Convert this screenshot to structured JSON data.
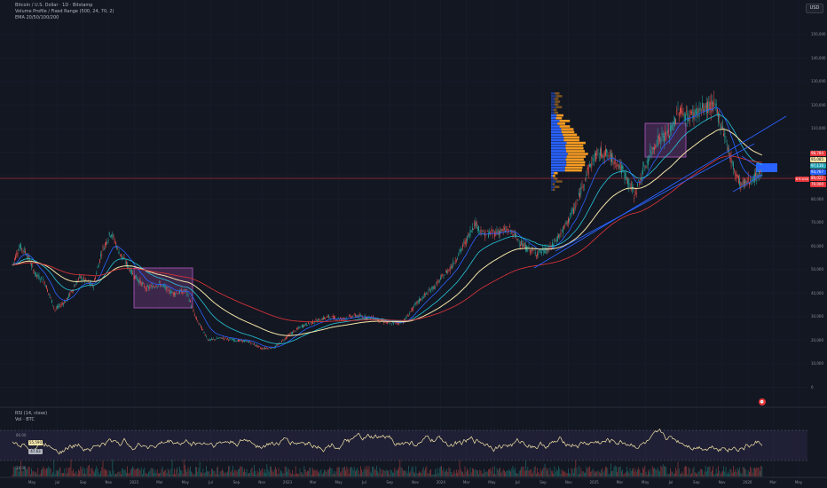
{
  "legend": {
    "title": "Bitcoin / U.S. Dollar · 1D · Bitstamp",
    "indicator_vp": "Volume Profile / Fixed Range (500, 24, 70, 2)",
    "indicator_ema": "EMA 20/50/100/200"
  },
  "currency_button": "USD",
  "symbol_tag": "BTCUSD",
  "y_axis_labels": [
    "150,000",
    "140,000",
    "130,000",
    "120,000",
    "110,000",
    "100,000",
    "90,000",
    "80,000",
    "70,000",
    "60,000",
    "50,000",
    "40,000",
    "30,000",
    "20,000",
    "10,000",
    "0"
  ],
  "price_tags": [
    {
      "label": "98,784",
      "color": "#e5353a"
    },
    {
      "label": "95,085",
      "color": "#f5e6a8"
    },
    {
      "label": "97,116",
      "color": "#2aa6b6"
    },
    {
      "label": "93,767",
      "color": "#2962ff"
    },
    {
      "label": "89,022",
      "color": "#e5353a"
    },
    {
      "label": "79,000",
      "color": "#e5353a"
    }
  ],
  "rsi": {
    "title": "RSI (14, close)",
    "vol_label": "Vol · BTC",
    "levels": [
      "80.00",
      "20.00"
    ],
    "tags": [
      {
        "label": "55,590",
        "color": "#f5e6a8"
      },
      {
        "label": "47.63",
        "color": "#b2b5be"
      }
    ]
  },
  "x_axis_labels": [
    "May",
    "Jul",
    "Sep",
    "Nov",
    "2022",
    "Mar",
    "May",
    "Jul",
    "Sep",
    "Nov",
    "2023",
    "Mar",
    "May",
    "Jul",
    "Sep",
    "Nov",
    "2024",
    "Mar",
    "May",
    "Jul",
    "Sep",
    "Nov",
    "2025",
    "Mar",
    "May",
    "Jul",
    "Sep",
    "Nov",
    "2026",
    "Mar",
    "May"
  ],
  "colors": {
    "background": "#131722",
    "up": "#26a69a",
    "down": "#ef5350",
    "ema20": "#2962ff",
    "ema50": "#26c6da",
    "ema100": "#f5e6a8",
    "ema200": "#e5353a",
    "box": "#b659c4",
    "trendline": "#2962ff",
    "vp_blue": "#2962ff",
    "vp_orange": "#f59b22"
  },
  "alert_icon": "alarm-icon"
}
